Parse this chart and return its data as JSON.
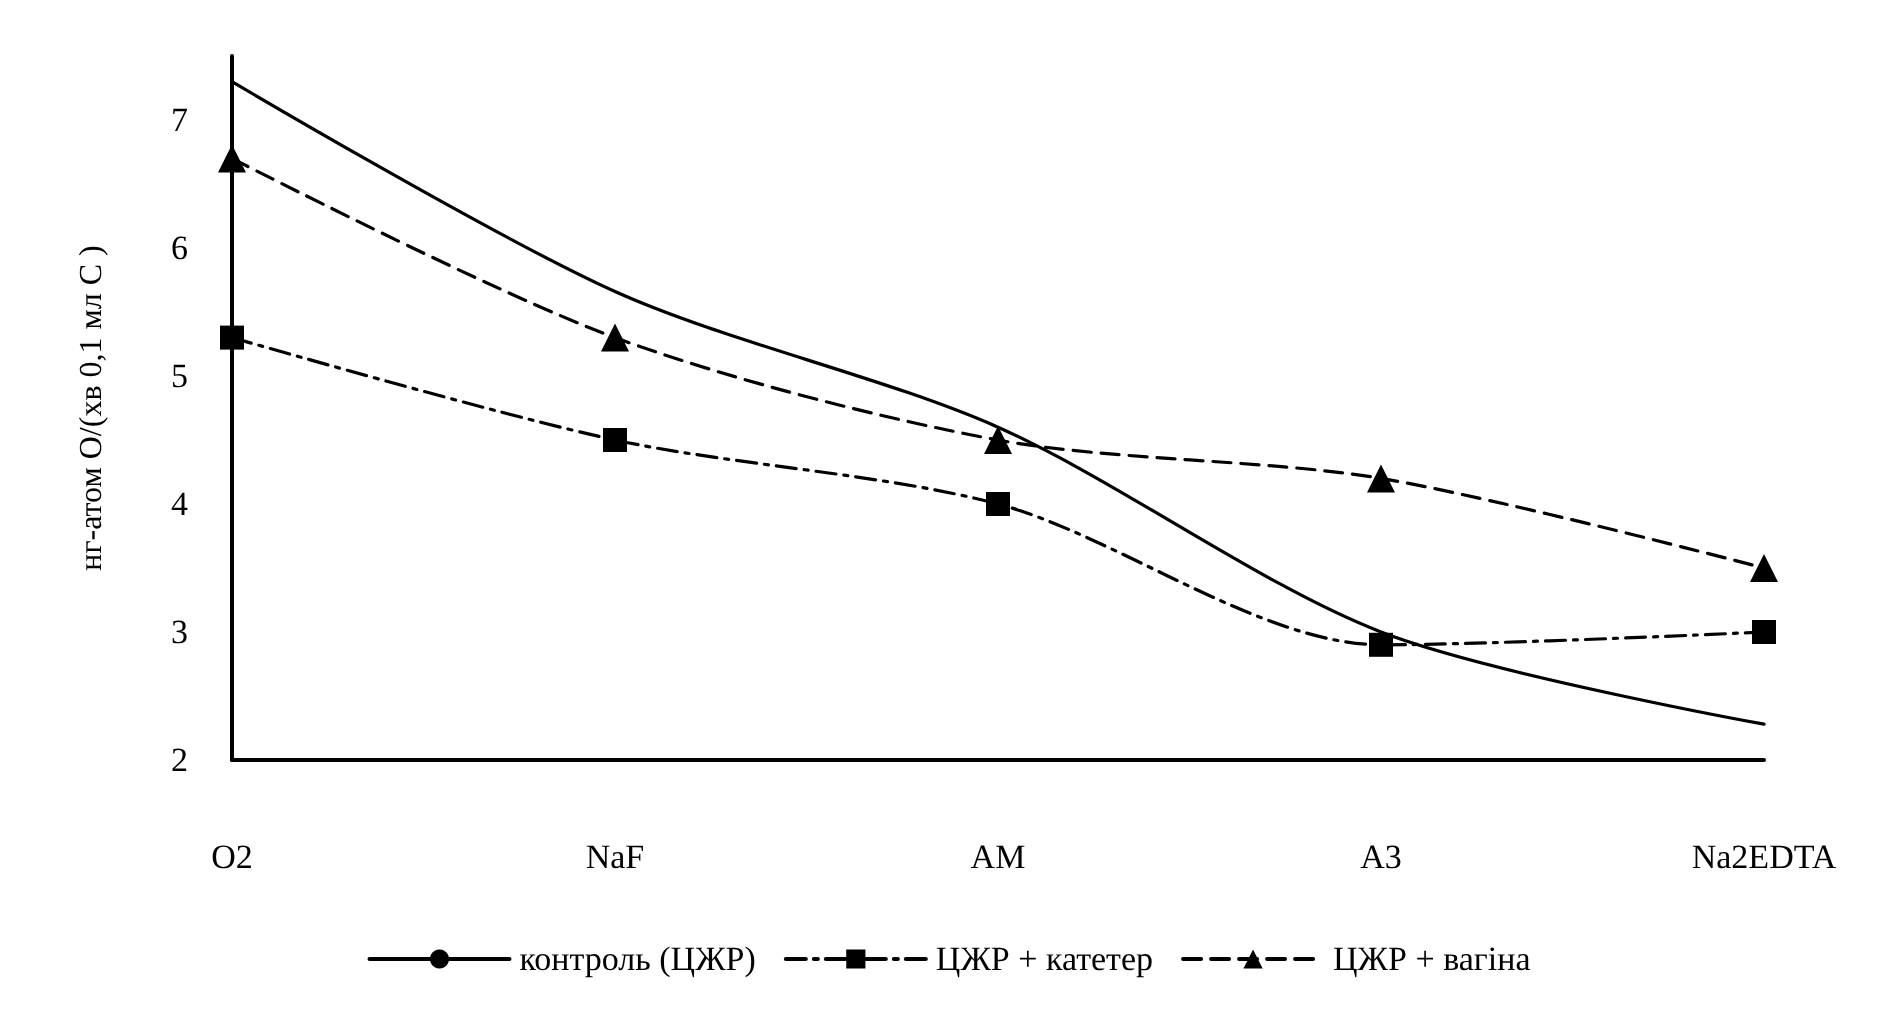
{
  "chart_data": {
    "type": "line",
    "ylabel": "нг-атом О/(хв 0,1 мл С )",
    "categories": [
      "O2",
      "NaF",
      "AM",
      "A3",
      "Na2EDTA"
    ],
    "series": [
      {
        "name": "контроль (ЦЖР)",
        "color": "#000000",
        "marker": "none",
        "line_style": "solid",
        "values": [
          7.3,
          5.66,
          4.6,
          3.0,
          2.28
        ]
      },
      {
        "name": "ЦЖР + катетер",
        "color": "#000000",
        "marker": "square",
        "line_style": "dashdot",
        "values": [
          5.3,
          4.5,
          4.0,
          2.9,
          3.0
        ]
      },
      {
        "name": "ЦЖР + вагіна",
        "color": "#000000",
        "marker": "triangle",
        "line_style": "dashed",
        "values": [
          6.7,
          5.3,
          4.5,
          4.2,
          3.5
        ]
      }
    ],
    "ylim": [
      2,
      7.5
    ],
    "yticks": [
      2,
      3,
      4,
      5,
      6,
      7
    ],
    "grid": false,
    "legend": "bottom"
  }
}
